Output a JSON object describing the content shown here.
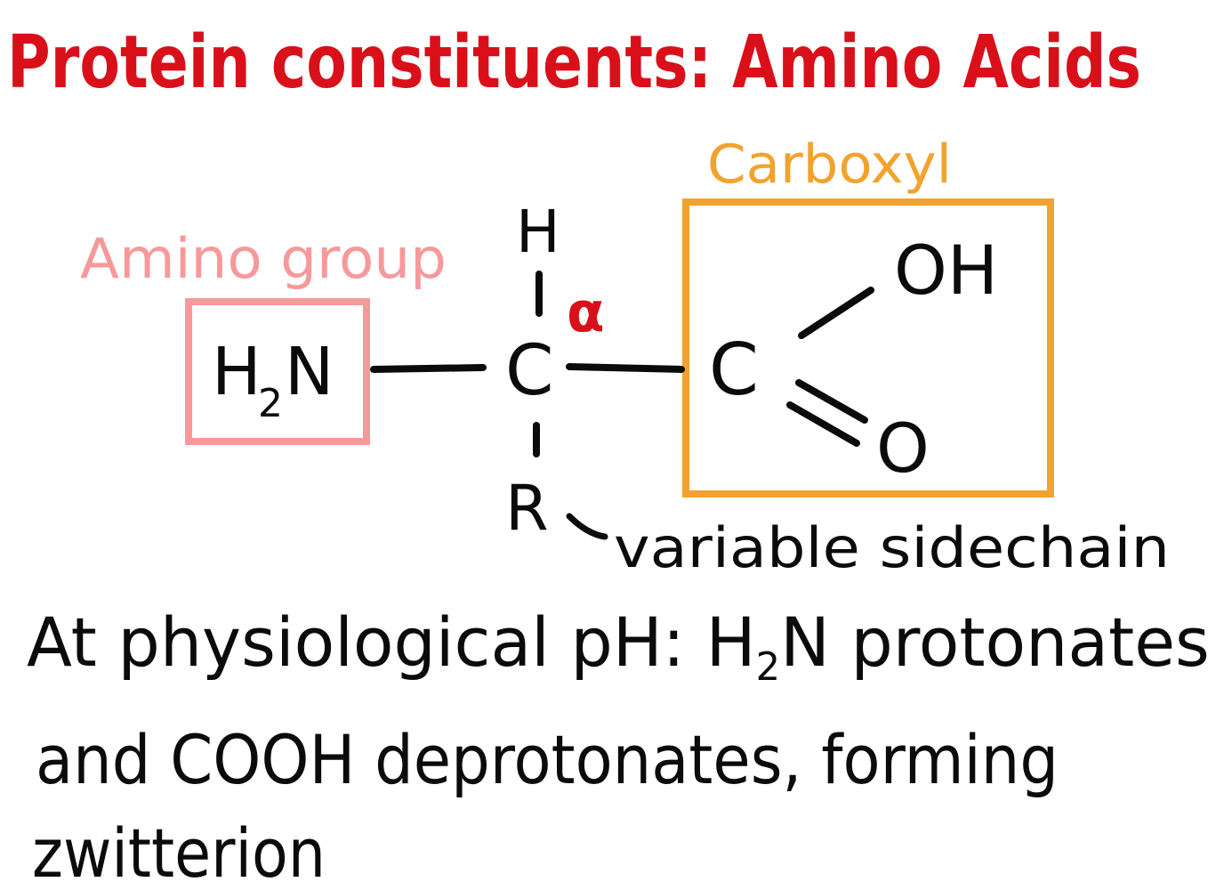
{
  "title": "Protein constituents: Amino Acids",
  "colors": {
    "title": "#d9101a",
    "carboxyl": "#f2a22e",
    "amino": "#f7999a",
    "alpha": "#d9101a",
    "ink": "#0b0b0b"
  },
  "labels": {
    "carboxyl": "Carboxyl",
    "amino_group": "Amino group",
    "alpha": "α",
    "side_chain": "variable sidechain"
  },
  "structure": {
    "amine_h": "H",
    "amine_sub": "2",
    "amine_n": "N",
    "hydrogen": "H",
    "alpha_carbon": "C",
    "r_group": "R",
    "carboxyl_carbon": "C",
    "hydroxyl": "OH",
    "carbonyl_oxygen": "O"
  },
  "notes": {
    "line1_prefix": "At physiological pH: ",
    "line1_h": "H",
    "line1_sub": "2",
    "line1_rest": "N protonates",
    "line2": "and COOH deprotonates, forming",
    "line3": "zwitterion"
  }
}
